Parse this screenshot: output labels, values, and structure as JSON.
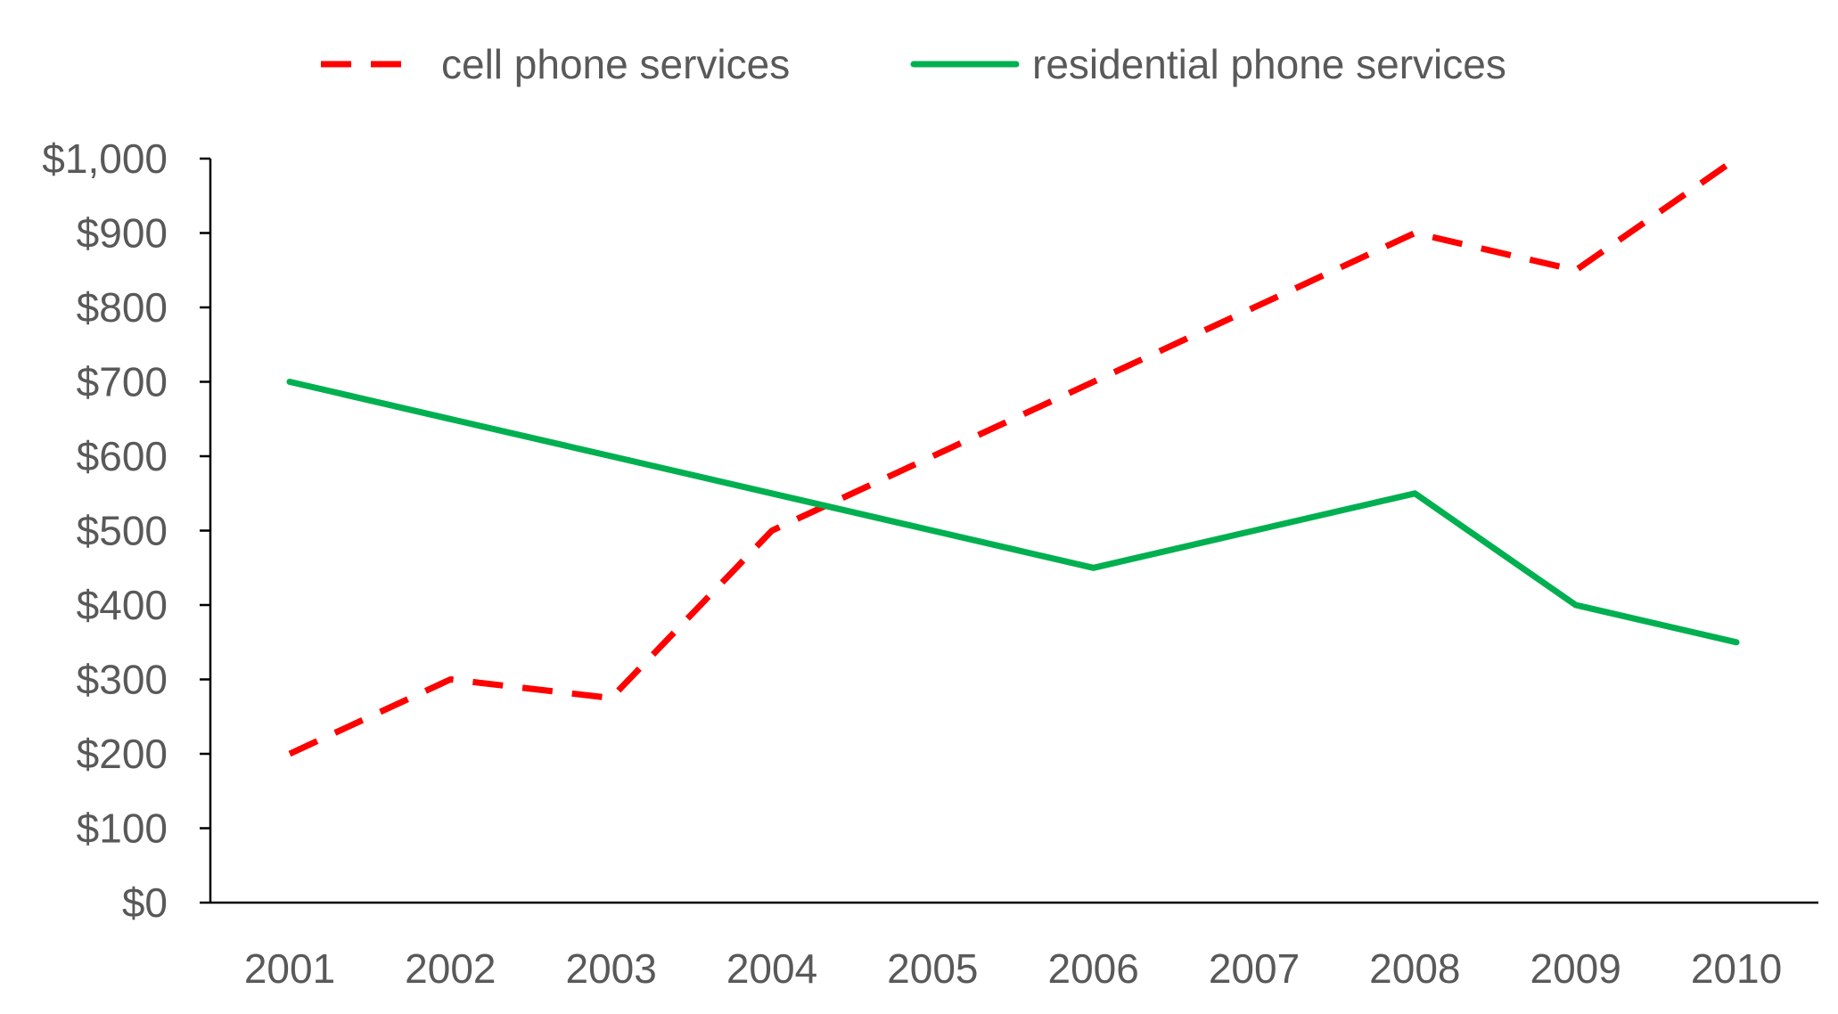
{
  "chart_data": {
    "type": "line",
    "title": "",
    "xlabel": "",
    "ylabel": "",
    "categories": [
      "2001",
      "2002",
      "2003",
      "2004",
      "2005",
      "2006",
      "2007",
      "2008",
      "2009",
      "2010"
    ],
    "series": [
      {
        "name": "cell phone services",
        "values": [
          200,
          300,
          275,
          500,
          600,
          700,
          800,
          900,
          850,
          1000
        ],
        "color": "#ff0000",
        "style": "dashed"
      },
      {
        "name": "residential phone services",
        "values": [
          700,
          650,
          600,
          550,
          500,
          450,
          500,
          550,
          400,
          350
        ],
        "color": "#00b050",
        "style": "solid"
      }
    ],
    "ylim": [
      0,
      1000
    ],
    "yticks": [
      0,
      100,
      200,
      300,
      400,
      500,
      600,
      700,
      800,
      900,
      1000
    ],
    "ytick_labels": [
      "$0",
      "$100",
      "$200",
      "$300",
      "$400",
      "$500",
      "$600",
      "$700",
      "$800",
      "$900",
      "$1,000"
    ],
    "grid": false,
    "legend_position": "top-center"
  },
  "colors": {
    "axis": "#000000",
    "tick_text": "#595959",
    "legend_text": "#595959"
  }
}
